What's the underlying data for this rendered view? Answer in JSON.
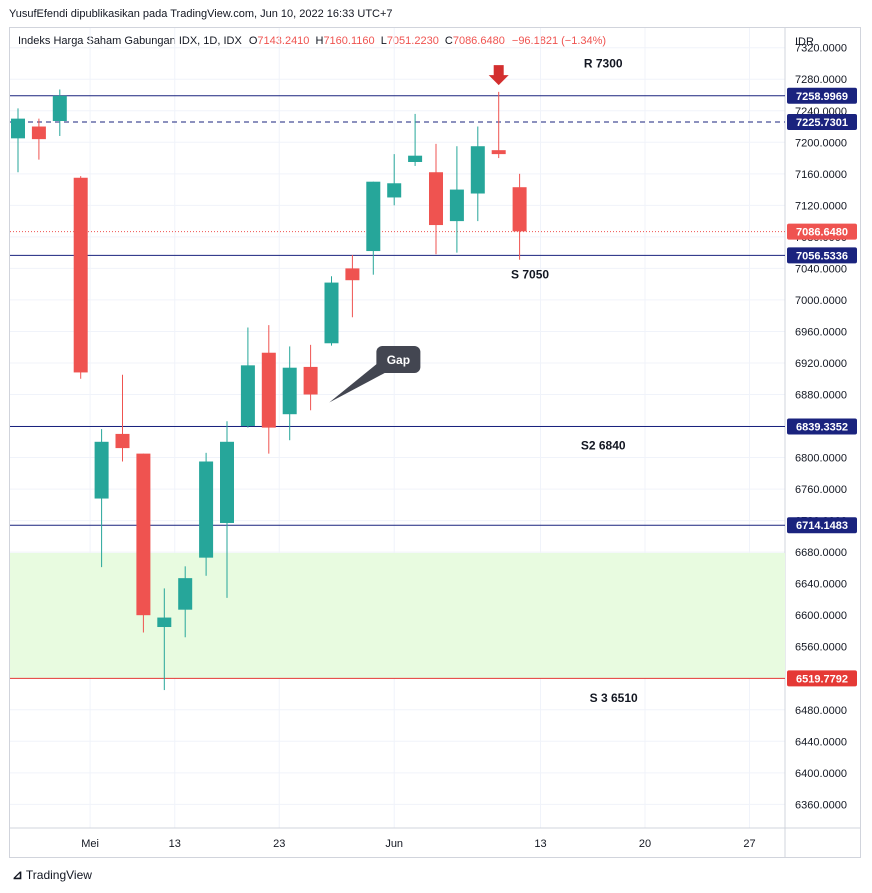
{
  "attribution": "YusufEfendi dipublikasikan pada TradingView.com, Jun 10, 2022 16:33 UTC+7",
  "legend": {
    "symbol": "Indeks Harga Saham Gabungan IDX, 1D, IDX",
    "o_label": "O",
    "o": "7143.2410",
    "h_label": "H",
    "h": "7160.1160",
    "l_label": "L",
    "l": "7051.2230",
    "c_label": "C",
    "c": "7086.6480",
    "change": "−96.1821 (−1.34%)"
  },
  "brand": "TradingView",
  "chart_data": {
    "type": "candlestick",
    "currency": "IDR",
    "ylim": [
      6330,
      7345
    ],
    "y_ticks": [
      "7320.0000",
      "7280.0000",
      "7240.0000",
      "7200.0000",
      "7160.0000",
      "7120.0000",
      "7080.0000",
      "7040.0000",
      "7000.0000",
      "6960.0000",
      "6920.0000",
      "6880.0000",
      "6840.0000",
      "6800.0000",
      "6760.0000",
      "6720.0000",
      "6680.0000",
      "6640.0000",
      "6600.0000",
      "6560.0000",
      "6520.0000",
      "6480.0000",
      "6440.0000",
      "6400.0000",
      "6360.0000"
    ],
    "x_ticks": [
      "Mei",
      "13",
      "23",
      "Jun",
      "13",
      "20",
      "27"
    ],
    "x_tick_index": [
      3.45,
      7.5,
      12.5,
      18.0,
      25.0,
      30.0,
      35.0
    ],
    "candles": [
      {
        "o": 7205,
        "h": 7243,
        "l": 7162,
        "c": 7230
      },
      {
        "o": 7220,
        "h": 7230,
        "l": 7178,
        "c": 7204
      },
      {
        "o": 7227,
        "h": 7267,
        "l": 7208,
        "c": 7259
      },
      {
        "o": 7155,
        "h": 7157,
        "l": 6900,
        "c": 6908
      },
      {
        "o": 6748,
        "h": 6836,
        "l": 6661,
        "c": 6820
      },
      {
        "o": 6830,
        "h": 6905,
        "l": 6795,
        "c": 6812
      },
      {
        "o": 6805,
        "h": 6805,
        "l": 6578,
        "c": 6600
      },
      {
        "o": 6585,
        "h": 6634,
        "l": 6505,
        "c": 6597
      },
      {
        "o": 6607,
        "h": 6662,
        "l": 6572,
        "c": 6647
      },
      {
        "o": 6673,
        "h": 6806,
        "l": 6650,
        "c": 6795
      },
      {
        "o": 6717,
        "h": 6846,
        "l": 6622,
        "c": 6820
      },
      {
        "o": 6840,
        "h": 6965,
        "l": 6838,
        "c": 6917
      },
      {
        "o": 6933,
        "h": 6968,
        "l": 6805,
        "c": 6838
      },
      {
        "o": 6855,
        "h": 6941,
        "l": 6822,
        "c": 6914
      },
      {
        "o": 6915,
        "h": 6943,
        "l": 6860,
        "c": 6880
      },
      {
        "o": 6945,
        "h": 7030,
        "l": 6942,
        "c": 7022
      },
      {
        "o": 7040,
        "h": 7057,
        "l": 6978,
        "c": 7025
      },
      {
        "o": 7062,
        "h": 7150,
        "l": 7032,
        "c": 7150
      },
      {
        "o": 7130,
        "h": 7185,
        "l": 7120,
        "c": 7148
      },
      {
        "o": 7175,
        "h": 7236,
        "l": 7170,
        "c": 7183
      },
      {
        "o": 7162,
        "h": 7198,
        "l": 7058,
        "c": 7095
      },
      {
        "o": 7100,
        "h": 7195,
        "l": 7060,
        "c": 7140
      },
      {
        "o": 7135,
        "h": 7220,
        "l": 7100,
        "c": 7195
      },
      {
        "o": 7190,
        "h": 7264,
        "l": 7180,
        "c": 7185
      },
      {
        "o": 7143,
        "h": 7160,
        "l": 7051,
        "c": 7087
      }
    ],
    "levels": [
      {
        "value": 7258.9969,
        "label": "7258.9969",
        "style": "solid",
        "color": "#1a237e",
        "tag": "#1a237e"
      },
      {
        "value": 7225.7301,
        "label": "7225.7301",
        "style": "dashed",
        "color": "#1a237e",
        "tag": "#1a237e"
      },
      {
        "value": 7056.5336,
        "label": "7056.5336",
        "style": "solid",
        "color": "#1a237e",
        "tag": "#1a237e"
      },
      {
        "value": 6839.3352,
        "label": "6839.3352",
        "style": "solid",
        "color": "#1a237e",
        "tag": "#1a237e"
      },
      {
        "value": 6714.1483,
        "label": "6714.1483",
        "style": "solid",
        "color": "#1a237e",
        "tag": "#1a237e"
      },
      {
        "value": 6519.7792,
        "label": "6519.7792",
        "style": "solid",
        "color": "#e53935",
        "tag": "#e53935"
      }
    ],
    "last_price": {
      "value": 7086.648,
      "label": "7086.6480",
      "color": "#ef5350"
    },
    "zone": {
      "from": 6519.7792,
      "to": 6679,
      "color": "#e8fbe0"
    },
    "annotations": [
      {
        "text": "R 7300",
        "x_index": 28.0,
        "value": 7300
      },
      {
        "text": "S 7050",
        "x_index": 24.5,
        "value": 7032
      },
      {
        "text": "S2 6840",
        "x_index": 28.0,
        "value": 6815
      },
      {
        "text": "S 3 6510",
        "x_index": 28.5,
        "value": 6495
      }
    ],
    "callout": {
      "text": "Gap",
      "x_index": 18.2,
      "value": 6925,
      "target_index": 14.7,
      "target_value": 6880
    },
    "marker": {
      "type": "down-arrow",
      "x_index": 23.0,
      "value": 7270,
      "color": "#d32f2f"
    },
    "colors": {
      "up": "#26a69a",
      "down": "#ef5350"
    }
  }
}
